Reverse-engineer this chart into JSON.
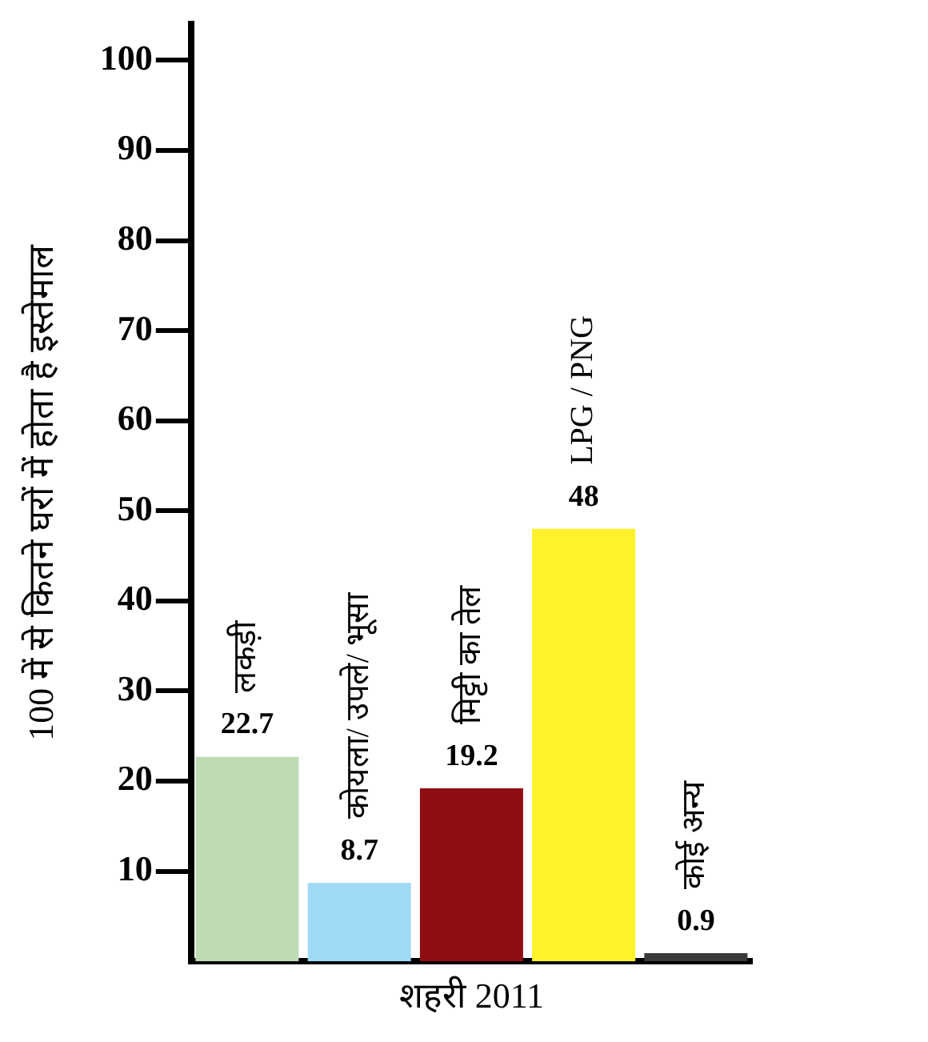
{
  "chart_data": {
    "type": "bar",
    "xlabel": "शहरी 2011",
    "ylabel": "100 में से कितने घरों में होता है इस्तेमाल",
    "categories": [
      "लकड़ी",
      "कोयला/ उपले/ भूसा",
      "मिट्टी का तेल",
      "LPG / PNG",
      "कोई अन्य"
    ],
    "values": [
      22.7,
      8.7,
      19.2,
      48,
      0.9
    ],
    "colors": [
      "#c0dab5",
      "#9fdaf5",
      "#8f0e14",
      "#fff22a",
      "#3a3a3a"
    ],
    "ylim": [
      0,
      104
    ],
    "yticks": [
      10,
      20,
      30,
      40,
      50,
      60,
      70,
      80,
      90,
      100
    ],
    "data_labels": true,
    "grid": false,
    "legend": false
  }
}
